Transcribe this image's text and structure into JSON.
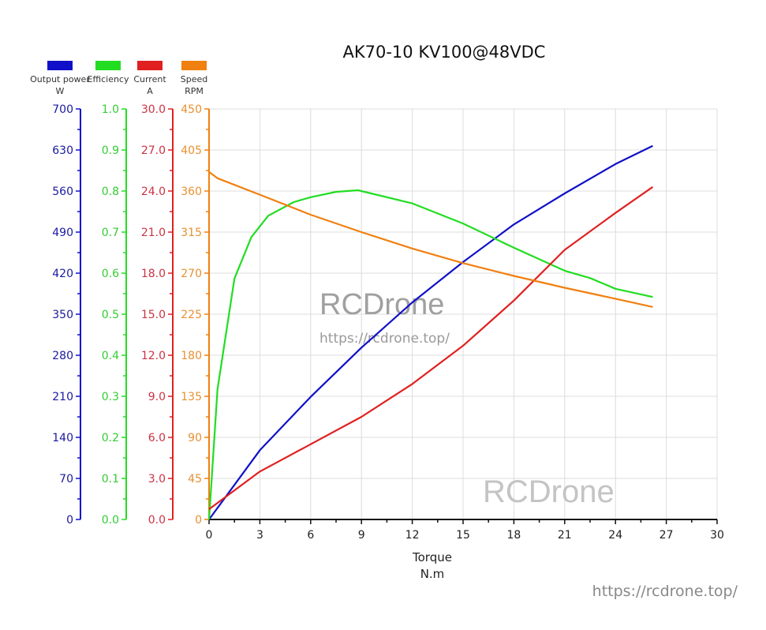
{
  "chart_data": {
    "type": "line",
    "title": "AK70-10 KV100@48VDC",
    "xlabel": "Torque",
    "xlabel_unit": "N.m",
    "xlim": [
      0,
      30
    ],
    "x_ticks": [
      0,
      3,
      6,
      9,
      12,
      15,
      18,
      21,
      24,
      27,
      30
    ],
    "grid": true,
    "legend_position": "top-left",
    "axes": [
      {
        "name": "Output power",
        "unit": "W",
        "color": "#1010c8",
        "ylim": [
          0,
          700
        ],
        "ticks": [
          "0",
          "70",
          "140",
          "210",
          "280",
          "350",
          "420",
          "490",
          "560",
          "630",
          "700"
        ]
      },
      {
        "name": "Efficiency",
        "unit": "",
        "color": "#22dd22",
        "ylim": [
          0,
          1.0
        ],
        "ticks": [
          "0.0",
          "0.1",
          "0.2",
          "0.3",
          "0.4",
          "0.5",
          "0.6",
          "0.7",
          "0.8",
          "0.9",
          "1.0"
        ]
      },
      {
        "name": "Current",
        "unit": "A",
        "color": "#e02020",
        "ylim": [
          0,
          30
        ],
        "ticks": [
          "0.0",
          "3.0",
          "6.0",
          "9.0",
          "12.0",
          "15.0",
          "18.0",
          "21.0",
          "24.0",
          "27.0",
          "30.0"
        ]
      },
      {
        "name": "Speed",
        "unit": "RPM",
        "color": "#f08010",
        "ylim": [
          0,
          450
        ],
        "ticks": [
          "0",
          "45",
          "90",
          "135",
          "180",
          "225",
          "270",
          "315",
          "360",
          "405",
          "450"
        ]
      }
    ],
    "series": [
      {
        "name": "Output power",
        "axis": 0,
        "color": "#1010c8",
        "x": [
          0,
          3,
          6,
          9,
          12,
          15,
          18,
          21,
          24,
          26.2
        ],
        "y": [
          0,
          118,
          209,
          293,
          370,
          439,
          503,
          556,
          606,
          637
        ]
      },
      {
        "name": "Efficiency",
        "axis": 1,
        "color": "#22dd22",
        "x": [
          0,
          0.5,
          1.5,
          2.5,
          3.5,
          5,
          6,
          7.5,
          8.8,
          12,
          15,
          18,
          21,
          22.5,
          24,
          26.2
        ],
        "y": [
          0,
          0.317,
          0.587,
          0.688,
          0.74,
          0.773,
          0.785,
          0.798,
          0.802,
          0.77,
          0.721,
          0.662,
          0.606,
          0.588,
          0.562,
          0.542
        ]
      },
      {
        "name": "Current",
        "axis": 2,
        "color": "#e02020",
        "x": [
          0,
          3,
          6,
          9,
          12,
          15,
          18,
          21,
          24,
          26.2
        ],
        "y": [
          0.75,
          3.5,
          5.5,
          7.5,
          9.9,
          12.7,
          16.0,
          19.7,
          22.4,
          24.3
        ]
      },
      {
        "name": "Speed",
        "axis": 3,
        "color": "#f08010",
        "x": [
          0,
          0.5,
          3,
          6,
          9,
          12,
          15,
          18,
          21,
          24,
          26.2
        ],
        "y": [
          381,
          374,
          356,
          334,
          315,
          297,
          281,
          267,
          254,
          242,
          233
        ]
      }
    ],
    "annotations": [
      "RCDrone",
      "https://rcdrone.top/",
      "RCDrone",
      "https://rcdrone.top/"
    ]
  },
  "title": "AK70-10 KV100@48VDC",
  "legend": [
    {
      "label": "Output power",
      "unit": "W",
      "color": "#1010c8"
    },
    {
      "label": "Efficiency",
      "unit": "",
      "color": "#22dd22"
    },
    {
      "label": "Current",
      "unit": "A",
      "color": "#e02020"
    },
    {
      "label": "Speed",
      "unit": "RPM",
      "color": "#f08010"
    }
  ],
  "xaxis": {
    "label": "Torque",
    "unit": "N.m"
  },
  "watermarks": {
    "center_brand": "RCDrone",
    "center_url": "https://rcdrone.top/",
    "lower_brand": "RCDrone"
  },
  "footer_url": "https://rcdrone.top/"
}
